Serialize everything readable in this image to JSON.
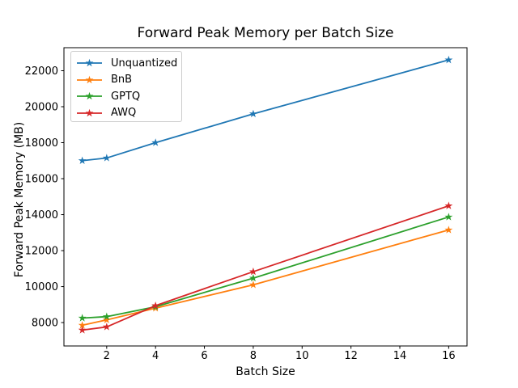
{
  "chart_data": {
    "type": "line",
    "title": "Forward Peak Memory per Batch Size",
    "xlabel": "Batch Size",
    "ylabel": "Forward Peak Memory (MB)",
    "x": [
      1,
      2,
      4,
      8,
      16
    ],
    "series": [
      {
        "name": "Unquantized",
        "color": "#1f77b4",
        "values": [
          17000,
          17150,
          18000,
          19600,
          22600
        ]
      },
      {
        "name": "BnB",
        "color": "#ff7f0e",
        "values": [
          7850,
          8150,
          8800,
          10100,
          13150
        ]
      },
      {
        "name": "GPTQ",
        "color": "#2ca02c",
        "values": [
          8250,
          8330,
          8880,
          10470,
          13870
        ]
      },
      {
        "name": "AWQ",
        "color": "#d62728",
        "values": [
          7580,
          7760,
          8940,
          10830,
          14490
        ]
      }
    ],
    "xticks": [
      2,
      4,
      6,
      8,
      10,
      12,
      14,
      16
    ],
    "yticks": [
      8000,
      10000,
      12000,
      14000,
      16000,
      18000,
      20000,
      22000
    ],
    "xlim": [
      0.25,
      16.75
    ],
    "ylim": [
      6700,
      23280
    ],
    "marker": "star",
    "grid": false,
    "legend_position": "upper-left"
  },
  "colors": {
    "background": "#ffffff",
    "text": "#000000",
    "spine": "#000000",
    "legend_border": "#cccccc"
  }
}
